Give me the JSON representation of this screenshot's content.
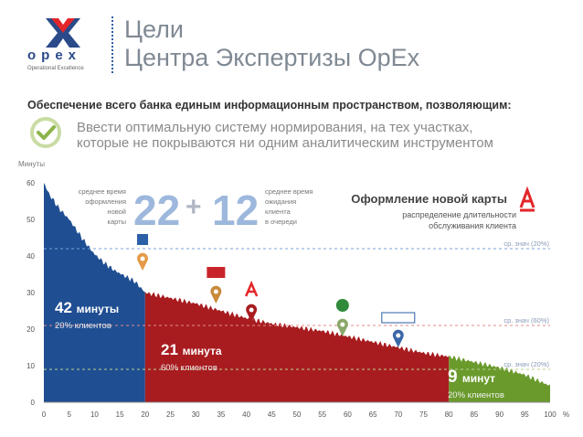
{
  "header": {
    "logo_text": "opex",
    "logo_tagline": "Operational Excellence",
    "title_line1": "Цели",
    "title_line2": "Центра Экспертизы OpEx"
  },
  "subtitle": "Обеспечение всего банка единым информационным пространством, позволяющим:",
  "goal": {
    "line1": "Ввести оптимальную систему нормирования, на тех участках,",
    "line2": "которые не покрываются  ни одним аналитическим инструментом"
  },
  "colors": {
    "blue": "#1f4e92",
    "red": "#a81c20",
    "green": "#6a9a2c",
    "accent_red": "#e3262a",
    "big_number": "#9db8dc"
  },
  "icons": [
    "gazprombank-icon",
    "post-bank-icon",
    "alfa-bank-icon",
    "sberbank-icon",
    "vtb24-icon"
  ],
  "chart_data": {
    "type": "area",
    "ylabel": "Минуты",
    "xlabel": "%",
    "xlim": [
      0,
      100
    ],
    "ylim": [
      0,
      60
    ],
    "xticks": [
      0,
      5,
      10,
      15,
      20,
      25,
      30,
      35,
      40,
      45,
      50,
      55,
      60,
      65,
      70,
      75,
      80,
      85,
      90,
      95,
      100
    ],
    "yticks": [
      0,
      10,
      20,
      30,
      40,
      50,
      60
    ],
    "x": [
      0,
      1,
      2,
      3,
      4,
      5,
      6,
      7,
      8,
      10,
      12,
      14,
      16,
      18,
      20,
      25,
      30,
      35,
      40,
      45,
      50,
      55,
      60,
      65,
      70,
      75,
      80,
      85,
      90,
      95,
      100
    ],
    "y": [
      60,
      57,
      55,
      53,
      51.5,
      50,
      48,
      46,
      44,
      40.5,
      38,
      36,
      34.5,
      33,
      30,
      28.5,
      27,
      25,
      23,
      21.5,
      20.5,
      19.5,
      18,
      16.5,
      15,
      13.5,
      12.5,
      11,
      9.5,
      7.5,
      4.5
    ],
    "segments": [
      {
        "from": 0,
        "to": 20,
        "color": "blue",
        "label_value": "42 минуты",
        "label_share": "20% клиентов"
      },
      {
        "from": 20,
        "to": 80,
        "color": "red",
        "label_value": "21 минута",
        "label_share": "60% клиентов"
      },
      {
        "from": 80,
        "to": 100,
        "color": "green",
        "label_value": "9 минут",
        "label_share": "20% клиентов"
      }
    ],
    "ref_lines": [
      {
        "y": 42,
        "label": "ср. знач (20%)"
      },
      {
        "y": 21,
        "label": "ср. знач (60%)"
      },
      {
        "y": 9,
        "label": "ср. знач (20%)"
      }
    ],
    "markers": [
      {
        "name": "gazprombank-icon",
        "x": 19.5,
        "y": 36
      },
      {
        "name": "post-bank-icon",
        "x": 34,
        "y": 27
      },
      {
        "name": "alfa-bank-icon",
        "x": 41,
        "y": 22
      },
      {
        "name": "sberbank-icon",
        "x": 59,
        "y": 18
      },
      {
        "name": "vtb24-icon",
        "x": 70,
        "y": 15
      }
    ],
    "annotation": {
      "left_text": [
        "среднее время",
        "оформления",
        "новой",
        "карты"
      ],
      "number_left": "22",
      "plus": "+",
      "number_right": "12",
      "right_text": [
        "среднее время",
        "ожидания",
        "клиента",
        "в очереди"
      ],
      "heading": "Оформление новой карты",
      "caption": [
        "распределение  длительности",
        "обслуживания клиента"
      ]
    }
  }
}
